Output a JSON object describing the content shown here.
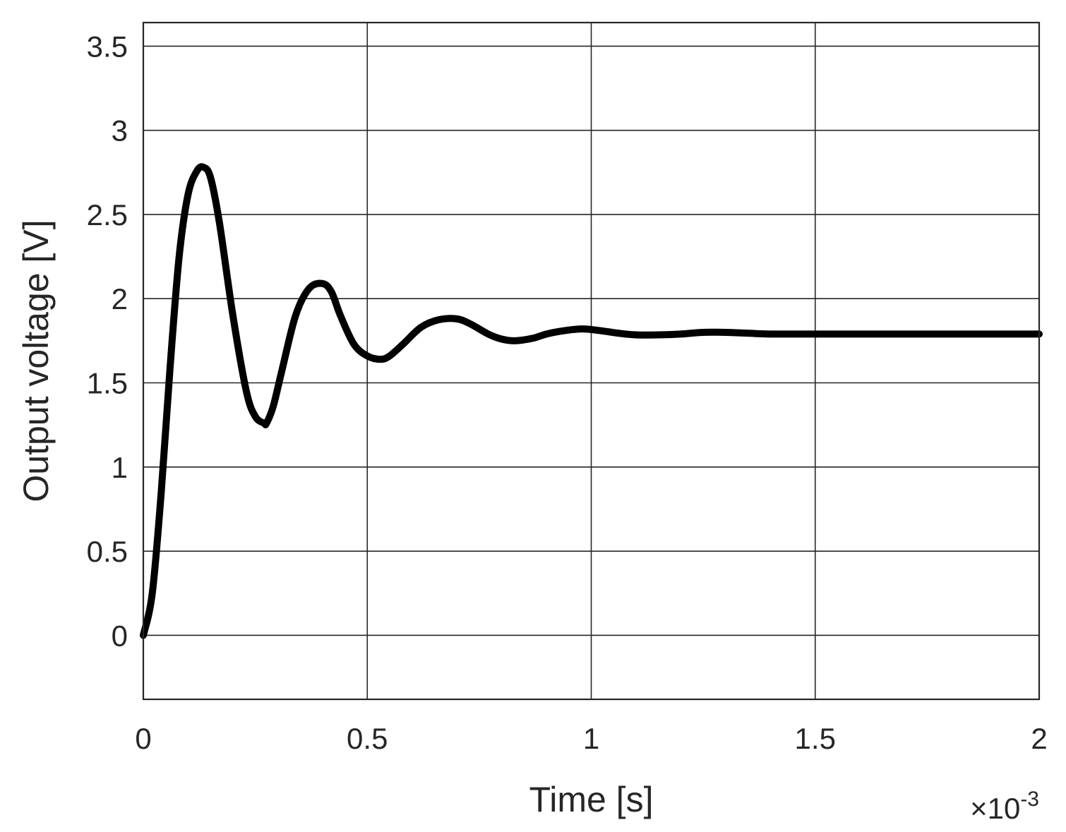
{
  "chart_data": {
    "type": "line",
    "title": "",
    "xlabel": "Time [s]",
    "ylabel": "Output voltage [V]",
    "x_exponent_label": {
      "base": "×10",
      "exponent": "-3"
    },
    "xlim": [
      0,
      0.002
    ],
    "ylim": [
      -0.38,
      3.64
    ],
    "x_ticks": [
      0,
      0.0005,
      0.001,
      0.0015,
      0.002
    ],
    "x_tick_labels": [
      "0",
      "0.5",
      "1",
      "1.5",
      "2"
    ],
    "y_ticks": [
      0,
      0.5,
      1,
      1.5,
      2,
      2.5,
      3,
      3.5
    ],
    "y_tick_labels": [
      "0",
      "0.5",
      "1",
      "1.5",
      "2",
      "2.5",
      "3",
      "3.5"
    ],
    "grid": true,
    "series": [
      {
        "color": "#000000",
        "x": [
          0,
          2e-05,
          4e-05,
          6e-05,
          8e-05,
          0.0001,
          0.00012,
          0.000135,
          0.00015,
          0.00017,
          0.0002,
          0.00023,
          0.00025,
          0.00027,
          0.000275,
          0.00029,
          0.00031,
          0.00034,
          0.00037,
          0.0004,
          0.00042,
          0.00044,
          0.00047,
          0.0005,
          0.00053,
          0.00055,
          0.00058,
          0.00062,
          0.00066,
          0.0007,
          0.00073,
          0.00077,
          0.0008,
          0.00083,
          0.00087,
          0.0009,
          0.00094,
          0.00098,
          0.00102,
          0.00106,
          0.0011,
          0.00115,
          0.0012,
          0.00125,
          0.0013,
          0.00135,
          0.0014,
          0.0015,
          0.0016,
          0.0017,
          0.0018,
          0.0019,
          0.002
        ],
        "y": [
          0,
          0.25,
          0.85,
          1.6,
          2.25,
          2.62,
          2.76,
          2.78,
          2.72,
          2.45,
          1.9,
          1.45,
          1.3,
          1.26,
          1.26,
          1.36,
          1.58,
          1.9,
          2.06,
          2.09,
          2.04,
          1.9,
          1.73,
          1.66,
          1.64,
          1.66,
          1.73,
          1.83,
          1.875,
          1.88,
          1.85,
          1.79,
          1.76,
          1.75,
          1.765,
          1.79,
          1.81,
          1.82,
          1.81,
          1.795,
          1.785,
          1.785,
          1.79,
          1.8,
          1.8,
          1.795,
          1.79,
          1.79,
          1.79,
          1.79,
          1.79,
          1.79,
          1.79
        ]
      }
    ]
  }
}
